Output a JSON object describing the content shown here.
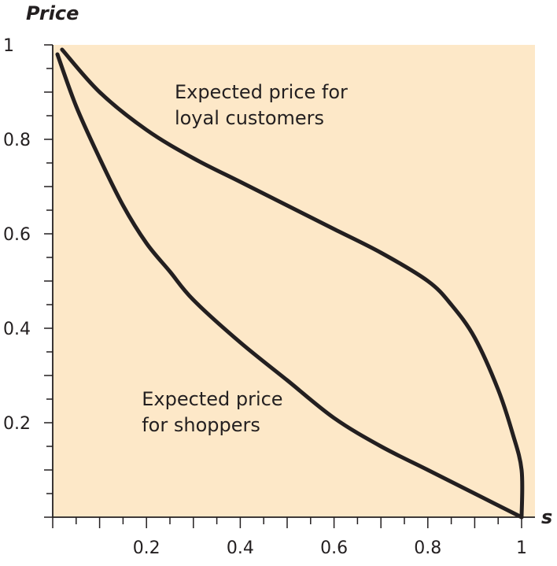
{
  "chart_data": {
    "type": "line",
    "xlabel": "s",
    "ylabel": "Price",
    "xlim": [
      0,
      1
    ],
    "ylim": [
      0,
      1
    ],
    "x_ticks": [
      0.2,
      0.4,
      0.6,
      0.8,
      1
    ],
    "x_tick_labels": [
      "0.2",
      "0.4",
      "0.6",
      "0.8",
      "1"
    ],
    "y_ticks": [
      0.2,
      0.4,
      0.6,
      0.8,
      1
    ],
    "y_tick_labels": [
      "0.2",
      "0.4",
      "0.6",
      "0.8",
      "1"
    ],
    "grid": false,
    "background_color": "#fde8c8",
    "line_color": "#231f20",
    "series": [
      {
        "name": "Expected price for loyal customers",
        "x": [
          0.02,
          0.1,
          0.2,
          0.3,
          0.4,
          0.5,
          0.6,
          0.7,
          0.8,
          0.85,
          0.9,
          0.95,
          0.98,
          1.0,
          1.0
        ],
        "y": [
          0.99,
          0.9,
          0.82,
          0.76,
          0.71,
          0.66,
          0.61,
          0.56,
          0.5,
          0.45,
          0.38,
          0.27,
          0.18,
          0.1,
          0.0
        ]
      },
      {
        "name": "Expected price for shoppers",
        "x": [
          0.01,
          0.05,
          0.1,
          0.15,
          0.2,
          0.25,
          0.3,
          0.4,
          0.5,
          0.6,
          0.7,
          0.8,
          0.9,
          1.0
        ],
        "y": [
          0.98,
          0.87,
          0.76,
          0.66,
          0.58,
          0.52,
          0.46,
          0.37,
          0.29,
          0.21,
          0.15,
          0.1,
          0.05,
          0.0
        ]
      }
    ],
    "annotations": [
      {
        "lines": [
          "Expected price for",
          "loyal customers"
        ],
        "x": 0.26,
        "y": 0.9
      },
      {
        "lines": [
          "Expected price",
          "for shoppers"
        ],
        "x": 0.19,
        "y": 0.25
      }
    ]
  }
}
